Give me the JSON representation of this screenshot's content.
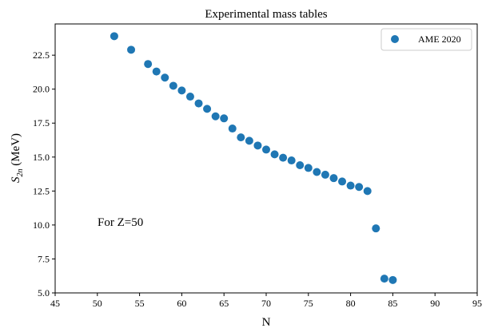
{
  "chart_data": {
    "type": "scatter",
    "title": "Experimental mass tables",
    "xlabel": "N",
    "ylabel": "S",
    "ylabel_sub": "2n",
    "ylabel_unit": " (MeV)",
    "xlim": [
      45,
      95
    ],
    "ylim": [
      5.0,
      24.8
    ],
    "xticks": [
      45,
      50,
      55,
      60,
      65,
      70,
      75,
      80,
      85,
      90,
      95
    ],
    "xtick_labels": [
      "45",
      "50",
      "55",
      "60",
      "65",
      "70",
      "75",
      "80",
      "85",
      "90",
      "95"
    ],
    "yticks": [
      5.0,
      7.5,
      10.0,
      12.5,
      15.0,
      17.5,
      20.0,
      22.5
    ],
    "ytick_labels": [
      "5.0",
      "7.5",
      "10.0",
      "12.5",
      "15.0",
      "17.5",
      "20.0",
      "22.5"
    ],
    "grid": false,
    "legend_position": "top-right",
    "annotation": "For Z=50",
    "series": [
      {
        "name": "AME 2020",
        "color": "#1f77b4",
        "points": [
          [
            52,
            23.9
          ],
          [
            54,
            22.9
          ],
          [
            56,
            21.85
          ],
          [
            57,
            21.3
          ],
          [
            58,
            20.85
          ],
          [
            59,
            20.25
          ],
          [
            60,
            19.9
          ],
          [
            61,
            19.45
          ],
          [
            62,
            18.95
          ],
          [
            63,
            18.55
          ],
          [
            64,
            18.0
          ],
          [
            65,
            17.85
          ],
          [
            66,
            17.1
          ],
          [
            67,
            16.45
          ],
          [
            68,
            16.2
          ],
          [
            69,
            15.85
          ],
          [
            70,
            15.55
          ],
          [
            71,
            15.2
          ],
          [
            72,
            14.95
          ],
          [
            73,
            14.75
          ],
          [
            74,
            14.4
          ],
          [
            75,
            14.2
          ],
          [
            76,
            13.9
          ],
          [
            77,
            13.7
          ],
          [
            78,
            13.45
          ],
          [
            79,
            13.2
          ],
          [
            80,
            12.9
          ],
          [
            81,
            12.8
          ],
          [
            82,
            12.5
          ],
          [
            83,
            9.75
          ],
          [
            84,
            6.05
          ],
          [
            85,
            5.95
          ]
        ]
      }
    ]
  }
}
